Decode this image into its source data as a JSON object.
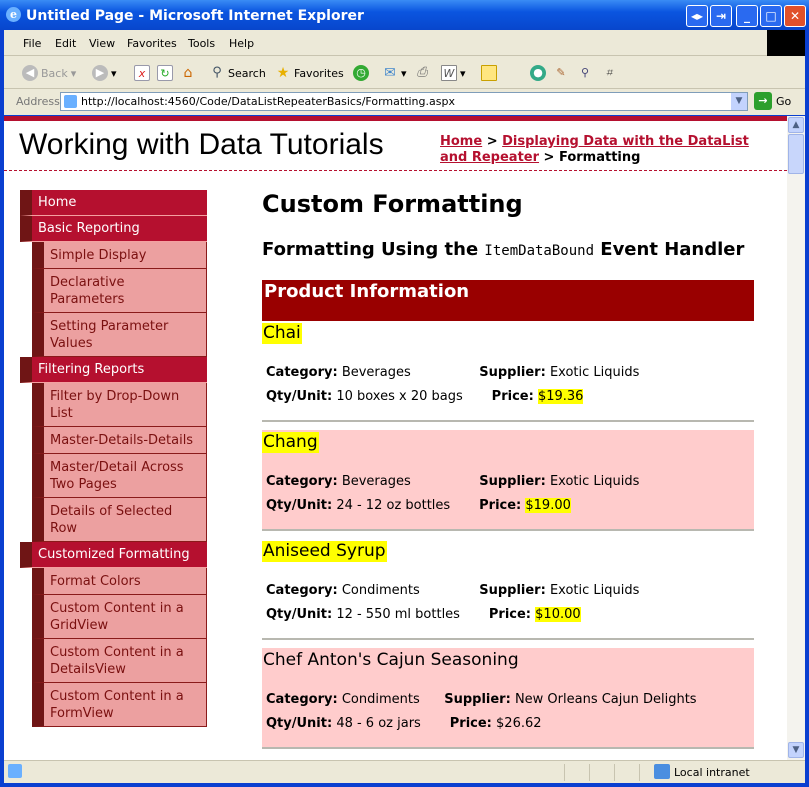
{
  "window": {
    "title": "Untitled Page - Microsoft Internet Explorer"
  },
  "menu": [
    "File",
    "Edit",
    "View",
    "Favorites",
    "Tools",
    "Help"
  ],
  "toolbar": {
    "back": "Back",
    "search": "Search",
    "favorites": "Favorites"
  },
  "address": {
    "label": "Address",
    "url": "http://localhost:4560/Code/DataListRepeaterBasics/Formatting.aspx",
    "go": "Go"
  },
  "site": {
    "title": "Working with Data Tutorials"
  },
  "breadcrumb": {
    "home": "Home",
    "sep": " > ",
    "parent": "Displaying Data with the DataList and Repeater",
    "current": "Formatting"
  },
  "sidebar": [
    {
      "label": "Home",
      "level": 1
    },
    {
      "label": "Basic Reporting",
      "level": 1
    },
    {
      "label": "Simple Display",
      "level": 2
    },
    {
      "label": "Declarative Parameters",
      "level": 2
    },
    {
      "label": "Setting Parameter Values",
      "level": 2
    },
    {
      "label": "Filtering Reports",
      "level": 1
    },
    {
      "label": "Filter by Drop-Down List",
      "level": 2
    },
    {
      "label": "Master-Details-Details",
      "level": 2
    },
    {
      "label": "Master/Detail Across Two Pages",
      "level": 2
    },
    {
      "label": "Details of Selected Row",
      "level": 2
    },
    {
      "label": "Customized Formatting",
      "level": 1
    },
    {
      "label": "Format Colors",
      "level": 2
    },
    {
      "label": "Custom Content in a GridView",
      "level": 2
    },
    {
      "label": "Custom Content in a DetailsView",
      "level": 2
    },
    {
      "label": "Custom Content in a FormView",
      "level": 2
    }
  ],
  "main": {
    "heading": "Custom Formatting",
    "subheading_pre": "Formatting Using the ",
    "subheading_code": "ItemDataBound",
    "subheading_post": " Event Handler",
    "panel_header": "Product Information",
    "labels": {
      "category": "Category:",
      "supplier": "Supplier:",
      "qty": "Qty/Unit:",
      "price": "Price:"
    },
    "products": [
      {
        "name": "Chai",
        "category": "Beverages",
        "supplier": "Exotic Liquids",
        "qty": "10 boxes x 20 bags",
        "price": "$19.36",
        "highlight_name": true,
        "highlight_price": true,
        "alt": false
      },
      {
        "name": "Chang",
        "category": "Beverages",
        "supplier": "Exotic Liquids",
        "qty": "24 - 12 oz bottles",
        "price": "$19.00",
        "highlight_name": true,
        "highlight_price": true,
        "alt": true
      },
      {
        "name": "Aniseed Syrup",
        "category": "Condiments",
        "supplier": "Exotic Liquids",
        "qty": "12 - 550 ml bottles",
        "price": "$10.00",
        "highlight_name": true,
        "highlight_price": true,
        "alt": false
      },
      {
        "name": "Chef Anton's Cajun Seasoning",
        "category": "Condiments",
        "supplier": "New Orleans Cajun Delights",
        "qty": "48 - 6 oz jars",
        "price": "$26.62",
        "highlight_name": false,
        "highlight_price": false,
        "alt": true
      }
    ]
  },
  "status": {
    "zone": "Local intranet"
  },
  "colors": {
    "accent": "#b5102f",
    "panel": "#990000",
    "alt_row": "#ffcccc",
    "highlight": "#ffff00",
    "submenu": "#eca0a0"
  }
}
